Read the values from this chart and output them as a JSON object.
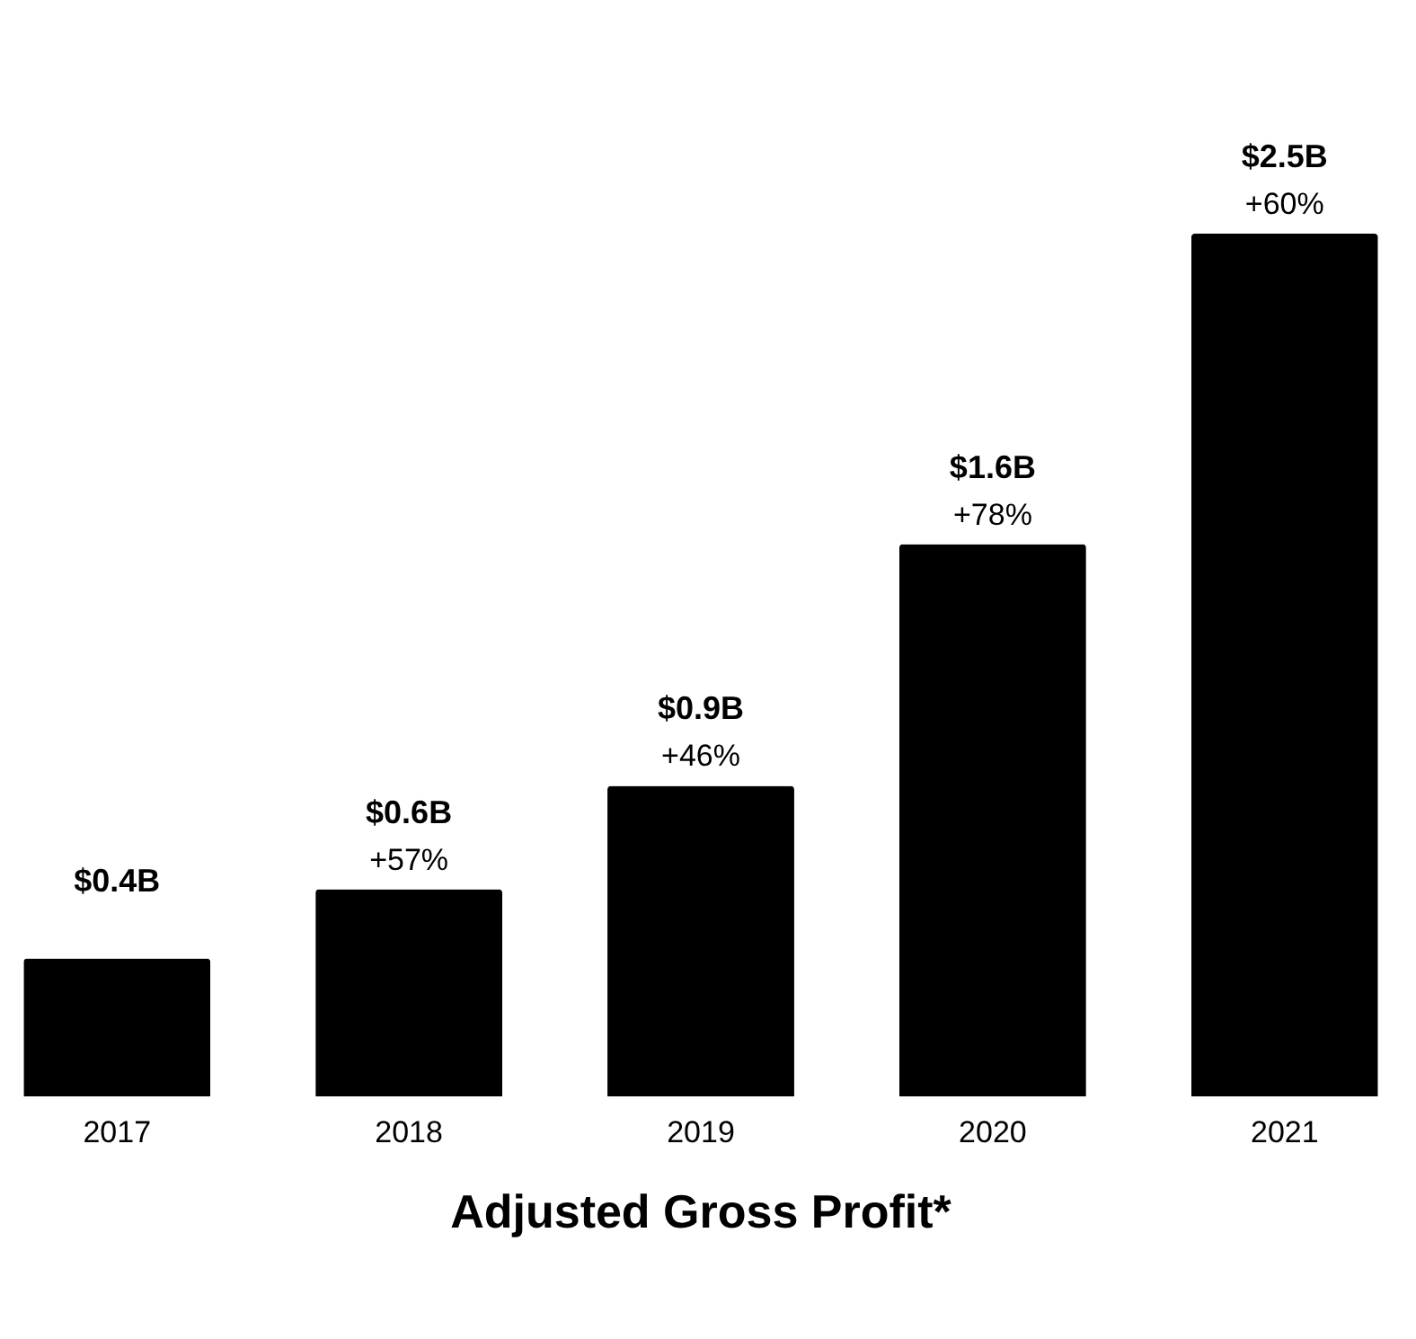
{
  "chart_data": {
    "type": "bar",
    "title": "Adjusted Gross Profit*",
    "categories": [
      "2017",
      "2018",
      "2019",
      "2020",
      "2021"
    ],
    "values": [
      0.4,
      0.6,
      0.9,
      1.6,
      2.5
    ],
    "color": "#000000",
    "value_labels": [
      "$0.4B",
      "$0.6B",
      "$0.9B",
      "$1.6B",
      "$2.5B"
    ],
    "annotations": [
      {
        "text": "+57%",
        "x": "2018",
        "y": 0.6
      },
      {
        "text": "+46%",
        "x": "2019",
        "y": 0.9
      },
      {
        "text": "+78%",
        "x": "2020",
        "y": 1.6
      },
      {
        "text": "+60%",
        "x": "2021",
        "y": 2.5
      }
    ],
    "grid": false
  }
}
